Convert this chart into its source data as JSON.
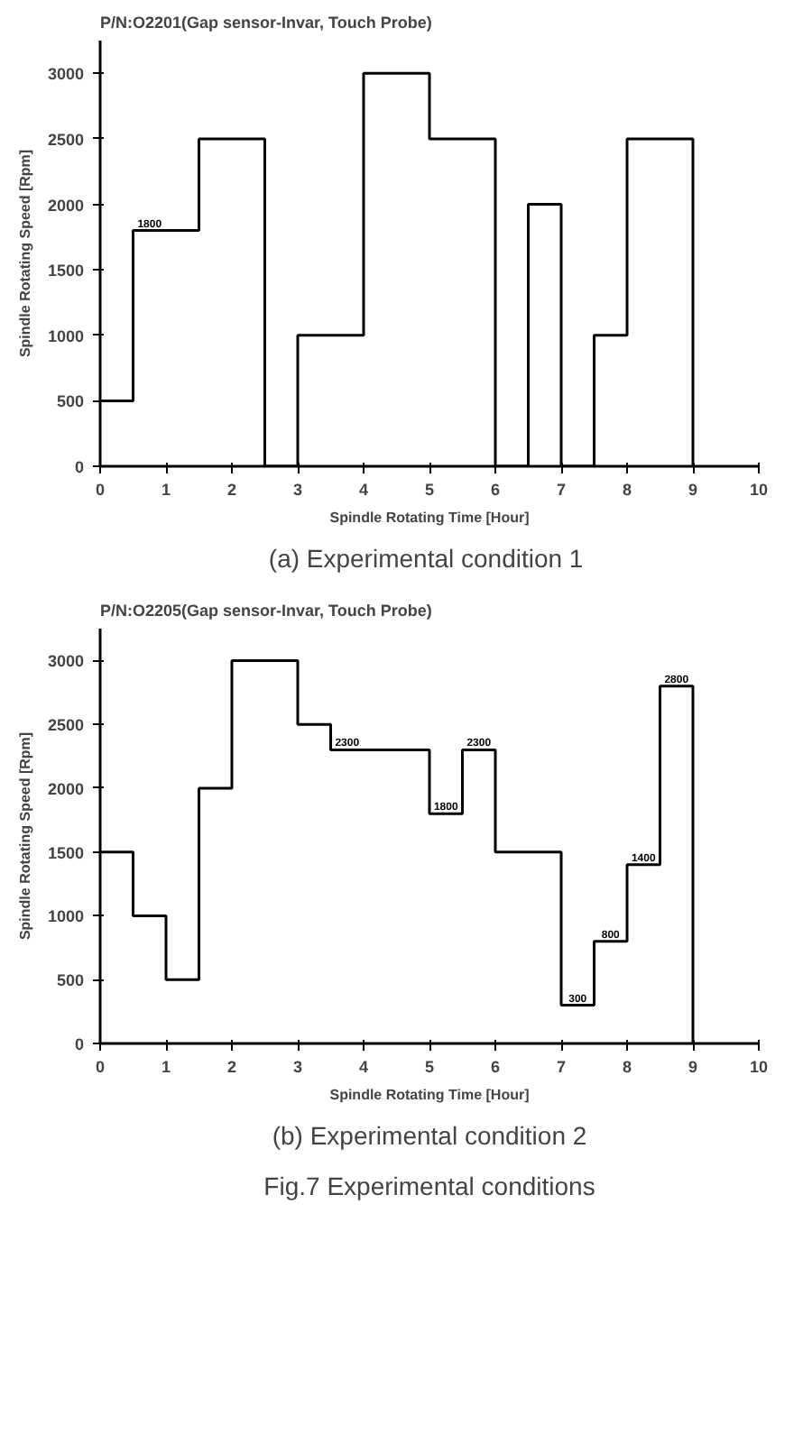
{
  "chart_data": [
    {
      "type": "step",
      "title": "P/N:O2201(Gap sensor-Invar, Touch Probe)",
      "xlabel": "Spindle Rotating Time [Hour]",
      "ylabel": "Spindle Rotating Speed [Rpm]",
      "x": [
        0,
        0.5,
        1.5,
        2.5,
        3,
        4,
        5,
        6,
        6.5,
        7,
        7.5,
        8,
        9
      ],
      "series": [
        {
          "color": "#000000",
          "values": [
            500,
            1800,
            2500,
            0,
            1000,
            3000,
            2500,
            0,
            2000,
            0,
            1000,
            2500,
            0
          ],
          "value_labels": [
            null,
            "1800",
            null,
            null,
            null,
            null,
            null,
            null,
            null,
            null,
            null,
            null,
            null
          ]
        }
      ],
      "xlim": [
        0,
        10
      ],
      "ylim": [
        0,
        3250
      ],
      "xticks": [
        0,
        1,
        2,
        3,
        4,
        5,
        6,
        7,
        8,
        9,
        10
      ],
      "yticks": [
        0,
        500,
        1000,
        1500,
        2000,
        2500,
        3000
      ],
      "grid": false,
      "annotations": [
        "(a)  Experimental condition 1"
      ]
    },
    {
      "type": "step",
      "title": "P/N:O2205(Gap sensor-Invar, Touch Probe)",
      "xlabel": "Spindle Rotating Time [Hour]",
      "ylabel": "Spindle Rotating Speed [Rpm]",
      "x": [
        0,
        0.5,
        1,
        1.5,
        2,
        3,
        3.5,
        5,
        5.5,
        6,
        7,
        7.5,
        8,
        8.5,
        9
      ],
      "series": [
        {
          "color": "#000000",
          "values": [
            1500,
            1000,
            500,
            2000,
            3000,
            2500,
            2300,
            1800,
            2300,
            1500,
            300,
            800,
            1400,
            2800,
            0
          ],
          "value_labels": [
            null,
            null,
            null,
            null,
            null,
            null,
            "2300",
            "1800",
            "2300",
            null,
            "300",
            "800",
            "1400",
            "2800",
            null
          ]
        }
      ],
      "xlim": [
        0,
        10
      ],
      "ylim": [
        0,
        3250
      ],
      "xticks": [
        0,
        1,
        2,
        3,
        4,
        5,
        6,
        7,
        8,
        9,
        10
      ],
      "yticks": [
        0,
        500,
        1000,
        1500,
        2000,
        2500,
        3000
      ],
      "grid": false,
      "annotations": [
        "(b) Experimental condition 2",
        "Fig.7 Experimental conditions"
      ]
    }
  ]
}
